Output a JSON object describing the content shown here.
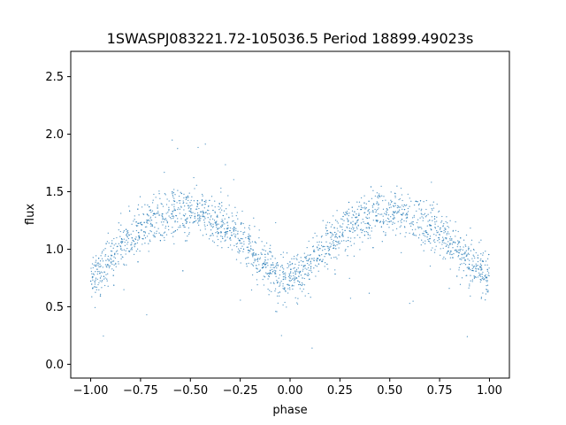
{
  "chart_data": {
    "type": "scatter",
    "title": "1SWASPJ083221.72-105036.5 Period 18899.49023s",
    "xlabel": "phase",
    "ylabel": "flux",
    "xlim": [
      -1.1,
      1.1
    ],
    "ylim": [
      -0.12,
      2.72
    ],
    "x_ticks": [
      -1.0,
      -0.75,
      -0.5,
      -0.25,
      0.0,
      0.25,
      0.5,
      0.75,
      1.0
    ],
    "x_tick_labels": [
      "−1.00",
      "−0.75",
      "−0.50",
      "−0.25",
      "0.00",
      "0.25",
      "0.50",
      "0.75",
      "1.00"
    ],
    "y_ticks": [
      0.0,
      0.5,
      1.0,
      1.5,
      2.0,
      2.5
    ],
    "y_tick_labels": [
      "0.0",
      "0.5",
      "1.0",
      "1.5",
      "2.0",
      "2.5"
    ],
    "grid": false,
    "point_color": "#1f77b4",
    "series": [
      {
        "x": [
          -1.0,
          -0.95,
          -0.9,
          -0.85,
          -0.8,
          -0.75,
          -0.7,
          -0.65,
          -0.6,
          -0.55,
          -0.5,
          -0.45,
          -0.4,
          -0.35,
          -0.3,
          -0.25,
          -0.2,
          -0.15,
          -0.1,
          -0.05,
          0.0,
          0.05,
          0.1,
          0.15,
          0.2,
          0.25,
          0.3,
          0.35,
          0.4,
          0.45,
          0.5,
          0.55,
          0.6,
          0.65,
          0.7,
          0.75,
          0.8,
          0.85,
          0.9,
          0.95,
          1.0
        ],
        "y": [
          0.75,
          0.82,
          0.92,
          1.02,
          1.1,
          1.18,
          1.24,
          1.28,
          1.32,
          1.34,
          1.33,
          1.31,
          1.28,
          1.24,
          1.18,
          1.1,
          1.02,
          0.92,
          0.82,
          0.75,
          0.72,
          0.78,
          0.88,
          0.98,
          1.06,
          1.14,
          1.2,
          1.25,
          1.29,
          1.32,
          1.34,
          1.32,
          1.29,
          1.25,
          1.2,
          1.14,
          1.06,
          0.98,
          0.88,
          0.8,
          0.75
        ],
        "spread": [
          0.16,
          0.16,
          0.16,
          0.16,
          0.16,
          0.16,
          0.16,
          0.16,
          0.16,
          0.16,
          0.16,
          0.16,
          0.16,
          0.16,
          0.16,
          0.16,
          0.16,
          0.16,
          0.16,
          0.16,
          0.16,
          0.16,
          0.16,
          0.16,
          0.16,
          0.16,
          0.16,
          0.16,
          0.16,
          0.16,
          0.16,
          0.16,
          0.16,
          0.16,
          0.16,
          0.16,
          0.16,
          0.16,
          0.16,
          0.16,
          0.16
        ]
      }
    ]
  }
}
